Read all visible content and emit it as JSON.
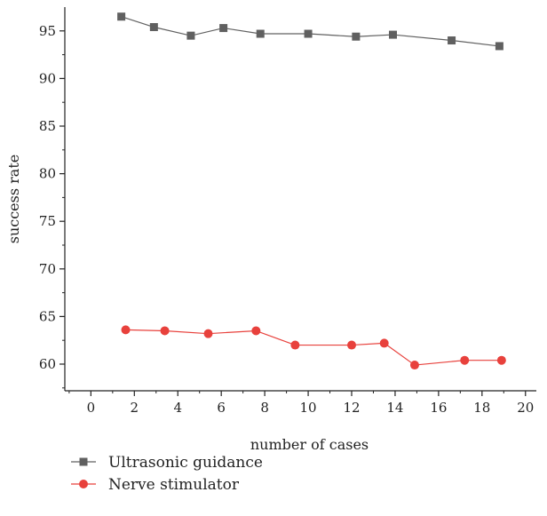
{
  "chart_data": {
    "type": "line",
    "xlabel": "number of cases",
    "ylabel": "success rate",
    "xlim": [
      -1.2,
      20.5
    ],
    "ylim": [
      57.2,
      97.5
    ],
    "xticks": [
      0,
      2,
      4,
      6,
      8,
      10,
      12,
      14,
      16,
      18,
      20
    ],
    "yticks": [
      60,
      65,
      70,
      75,
      80,
      85,
      90,
      95
    ],
    "grid": false,
    "legend_position": "bottom-left",
    "series": [
      {
        "name": "Ultrasonic guidance",
        "color": "#606060",
        "marker": "square",
        "x": [
          1.4,
          2.9,
          4.6,
          6.1,
          7.8,
          10.0,
          12.2,
          13.9,
          16.6,
          18.8
        ],
        "y": [
          96.5,
          95.4,
          94.5,
          95.3,
          94.7,
          94.7,
          94.4,
          94.6,
          94.0,
          93.4
        ]
      },
      {
        "name": "Nerve stimulator",
        "color": "#e8413c",
        "marker": "circle",
        "x": [
          1.6,
          3.4,
          5.4,
          7.6,
          9.4,
          12.0,
          13.5,
          14.9,
          17.2,
          18.9
        ],
        "y": [
          63.6,
          63.5,
          63.2,
          63.5,
          62.0,
          62.0,
          62.2,
          59.9,
          60.4,
          60.4
        ]
      }
    ]
  }
}
